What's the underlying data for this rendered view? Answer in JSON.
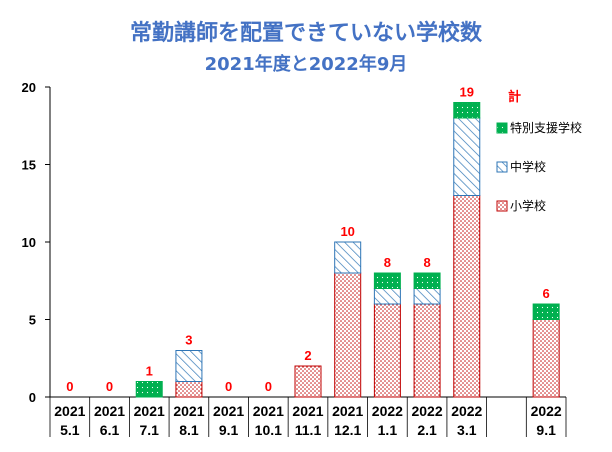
{
  "chart_data": {
    "type": "bar",
    "stacked": true,
    "title": "常勤講師を配置できていない学校数",
    "subtitle": "2021年度と2022年9月",
    "categories": [
      [
        "2021",
        "5.1"
      ],
      [
        "2021",
        "6.1"
      ],
      [
        "2021",
        "7.1"
      ],
      [
        "2021",
        "8.1"
      ],
      [
        "2021",
        "9.1"
      ],
      [
        "2021",
        "10.1"
      ],
      [
        "2021",
        "11.1"
      ],
      [
        "2021",
        "12.1"
      ],
      [
        "2022",
        "1.1"
      ],
      [
        "2022",
        "2.1"
      ],
      [
        "2022",
        "3.1"
      ],
      [
        "",
        ""
      ],
      [
        "2022",
        "9.1"
      ]
    ],
    "series": [
      {
        "name": "小学校",
        "color": "#C00000",
        "pattern": "dots",
        "values": [
          0,
          0,
          0,
          1,
          0,
          0,
          2,
          8,
          6,
          6,
          13,
          null,
          5
        ]
      },
      {
        "name": "中学校",
        "color": "#2E75B6",
        "pattern": "diagonal-stripes",
        "values": [
          0,
          0,
          0,
          2,
          0,
          0,
          0,
          2,
          1,
          1,
          5,
          null,
          0
        ]
      },
      {
        "name": "特別支援学校",
        "color": "#00B050",
        "pattern": "solid-with-dots",
        "values": [
          0,
          0,
          1,
          0,
          0,
          0,
          0,
          0,
          1,
          1,
          1,
          null,
          1
        ]
      }
    ],
    "totals": [
      0,
      0,
      1,
      3,
      0,
      0,
      2,
      10,
      8,
      8,
      19,
      null,
      6
    ],
    "total_label": "計",
    "legend_position": "right",
    "ylim": [
      0,
      20
    ],
    "yticks": [
      0,
      5,
      10,
      15,
      20
    ],
    "grid": false
  }
}
